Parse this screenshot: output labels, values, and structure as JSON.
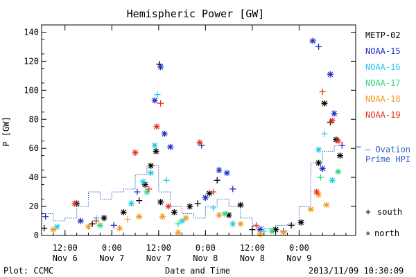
{
  "chart_data": {
    "type": "scatter",
    "title": "Hemispheric Power [GW]",
    "ylabel": "P [GW]",
    "xlabel": "Date and Time",
    "ylim": [
      0,
      145
    ],
    "xlim": [
      "2013-11-06 06:00",
      "2013-11-09 14:30"
    ],
    "y_ticks": [
      0,
      20,
      40,
      60,
      80,
      100,
      120,
      140
    ],
    "x_ticks": [
      {
        "t": "2013-11-06 12:00",
        "line1": "12:00",
        "line2": "Nov 6"
      },
      {
        "t": "2013-11-07 00:00",
        "line1": "0:00",
        "line2": "Nov 7"
      },
      {
        "t": "2013-11-07 12:00",
        "line1": "12:00",
        "line2": "Nov 7"
      },
      {
        "t": "2013-11-08 00:00",
        "line1": "0:00",
        "line2": "Nov 8"
      },
      {
        "t": "2013-11-08 12:00",
        "line1": "12:00",
        "line2": "Nov 8"
      },
      {
        "t": "2013-11-09 00:00",
        "line1": "0:00",
        "line2": "Nov 9"
      }
    ],
    "legend_placement": "right",
    "symbol_legend": {
      "south": "south",
      "north": "north",
      "south_marker": "+",
      "north_marker": "*"
    },
    "series": [
      {
        "name": "METP-02",
        "color": "#000000",
        "points": [
          {
            "x": "2013-11-06 06:40",
            "y": 5,
            "m": "+"
          },
          {
            "x": "2013-11-06 15:00",
            "y": 22,
            "m": "*"
          },
          {
            "x": "2013-11-06 19:00",
            "y": 8,
            "m": "+"
          },
          {
            "x": "2013-11-06 22:00",
            "y": 12,
            "m": "*"
          },
          {
            "x": "2013-11-07 03:00",
            "y": 16,
            "m": "*"
          },
          {
            "x": "2013-11-07 07:00",
            "y": 24,
            "m": "+"
          },
          {
            "x": "2013-11-07 08:30",
            "y": 35,
            "m": "*"
          },
          {
            "x": "2013-11-07 10:00",
            "y": 48,
            "m": "*"
          },
          {
            "x": "2013-11-07 11:20",
            "y": 58,
            "m": "*"
          },
          {
            "x": "2013-11-07 12:10",
            "y": 118,
            "m": "+"
          },
          {
            "x": "2013-11-07 12:30",
            "y": 23,
            "m": "*"
          },
          {
            "x": "2013-11-07 16:00",
            "y": 16,
            "m": "*"
          },
          {
            "x": "2013-11-07 20:00",
            "y": 20,
            "m": "*"
          },
          {
            "x": "2013-11-07 22:00",
            "y": 22,
            "m": "+"
          },
          {
            "x": "2013-11-08 01:00",
            "y": 29,
            "m": "*"
          },
          {
            "x": "2013-11-08 03:00",
            "y": 38,
            "m": "+"
          },
          {
            "x": "2013-11-08 06:00",
            "y": 14,
            "m": "*"
          },
          {
            "x": "2013-11-08 09:00",
            "y": 21,
            "m": "*"
          },
          {
            "x": "2013-11-08 12:00",
            "y": 4,
            "m": "+"
          },
          {
            "x": "2013-11-08 18:00",
            "y": 4,
            "m": "*"
          },
          {
            "x": "2013-11-08 22:00",
            "y": 7,
            "m": "+"
          },
          {
            "x": "2013-11-09 00:30",
            "y": 9,
            "m": "*"
          },
          {
            "x": "2013-11-09 05:00",
            "y": 50,
            "m": "*"
          },
          {
            "x": "2013-11-09 06:30",
            "y": 91,
            "m": "*"
          },
          {
            "x": "2013-11-09 08:00",
            "y": 78,
            "m": "+"
          },
          {
            "x": "2013-11-09 09:30",
            "y": 66,
            "m": "*"
          },
          {
            "x": "2013-11-09 10:30",
            "y": 55,
            "m": "*"
          }
        ]
      },
      {
        "name": "NOAA-15",
        "color": "#1a2ec8",
        "points": [
          {
            "x": "2013-11-06 07:00",
            "y": 13,
            "m": "+"
          },
          {
            "x": "2013-11-06 16:00",
            "y": 10,
            "m": "*"
          },
          {
            "x": "2013-11-07 00:30",
            "y": 7,
            "m": "+"
          },
          {
            "x": "2013-11-07 06:30",
            "y": 30,
            "m": "+"
          },
          {
            "x": "2013-11-07 11:00",
            "y": 93,
            "m": "*"
          },
          {
            "x": "2013-11-07 12:30",
            "y": 116,
            "m": "*"
          },
          {
            "x": "2013-11-07 13:30",
            "y": 70,
            "m": "*"
          },
          {
            "x": "2013-11-07 15:00",
            "y": 61,
            "m": "*"
          },
          {
            "x": "2013-11-07 23:00",
            "y": 62,
            "m": "+"
          },
          {
            "x": "2013-11-08 00:00",
            "y": 26,
            "m": "*"
          },
          {
            "x": "2013-11-08 03:30",
            "y": 45,
            "m": "*"
          },
          {
            "x": "2013-11-08 05:30",
            "y": 43,
            "m": "*"
          },
          {
            "x": "2013-11-08 07:00",
            "y": 32,
            "m": "+"
          },
          {
            "x": "2013-11-08 14:00",
            "y": 4,
            "m": "*"
          },
          {
            "x": "2013-11-08 20:00",
            "y": 3,
            "m": "+"
          },
          {
            "x": "2013-11-09 03:30",
            "y": 134,
            "m": "*"
          },
          {
            "x": "2013-11-09 05:00",
            "y": 130,
            "m": "+"
          },
          {
            "x": "2013-11-09 06:00",
            "y": 46,
            "m": "*"
          },
          {
            "x": "2013-11-09 08:00",
            "y": 111,
            "m": "*"
          },
          {
            "x": "2013-11-09 09:00",
            "y": 84,
            "m": "*"
          },
          {
            "x": "2013-11-09 11:00",
            "y": 62,
            "m": "+"
          }
        ]
      },
      {
        "name": "NOAA-16",
        "color": "#26c8e6",
        "points": [
          {
            "x": "2013-11-06 10:00",
            "y": 6,
            "m": "*"
          },
          {
            "x": "2013-11-06 20:00",
            "y": 12,
            "m": "+"
          },
          {
            "x": "2013-11-07 05:00",
            "y": 22,
            "m": "*"
          },
          {
            "x": "2013-11-07 08:00",
            "y": 37,
            "m": "*"
          },
          {
            "x": "2013-11-07 10:00",
            "y": 43,
            "m": "*"
          },
          {
            "x": "2013-11-07 11:00",
            "y": 62,
            "m": "*"
          },
          {
            "x": "2013-11-07 11:40",
            "y": 97,
            "m": "+"
          },
          {
            "x": "2013-11-07 14:00",
            "y": 38,
            "m": "+"
          },
          {
            "x": "2013-11-07 18:00",
            "y": 10,
            "m": "*"
          },
          {
            "x": "2013-11-08 02:00",
            "y": 19,
            "m": "+"
          },
          {
            "x": "2013-11-08 07:00",
            "y": 8,
            "m": "*"
          },
          {
            "x": "2013-11-08 15:00",
            "y": 3,
            "m": "+"
          },
          {
            "x": "2013-11-09 05:00",
            "y": 59,
            "m": "*"
          },
          {
            "x": "2013-11-09 06:30",
            "y": 70,
            "m": "+"
          },
          {
            "x": "2013-11-09 08:30",
            "y": 38,
            "m": "*"
          }
        ]
      },
      {
        "name": "NOAA-17",
        "color": "#2fd87a",
        "points": [
          {
            "x": "2013-11-06 21:00",
            "y": 7,
            "m": "*"
          },
          {
            "x": "2013-11-07 09:00",
            "y": 30,
            "m": "*"
          },
          {
            "x": "2013-11-07 17:00",
            "y": 8,
            "m": "+"
          },
          {
            "x": "2013-11-08 05:00",
            "y": 15,
            "m": "*"
          },
          {
            "x": "2013-11-08 17:00",
            "y": 3,
            "m": "*"
          },
          {
            "x": "2013-11-09 05:30",
            "y": 40,
            "m": "+"
          },
          {
            "x": "2013-11-09 10:00",
            "y": 44,
            "m": "*"
          }
        ]
      },
      {
        "name": "NOAA-18",
        "color": "#f29a1e",
        "points": [
          {
            "x": "2013-11-06 09:00",
            "y": 4,
            "m": "*"
          },
          {
            "x": "2013-11-06 18:00",
            "y": 6,
            "m": "*"
          },
          {
            "x": "2013-11-07 02:00",
            "y": 5,
            "m": "*"
          },
          {
            "x": "2013-11-07 04:00",
            "y": 11,
            "m": "+"
          },
          {
            "x": "2013-11-07 07:00",
            "y": 13,
            "m": "*"
          },
          {
            "x": "2013-11-07 13:00",
            "y": 13,
            "m": "*"
          },
          {
            "x": "2013-11-07 17:00",
            "y": 2,
            "m": "*"
          },
          {
            "x": "2013-11-07 19:00",
            "y": 12,
            "m": "*"
          },
          {
            "x": "2013-11-08 03:30",
            "y": 14,
            "m": "*"
          },
          {
            "x": "2013-11-08 09:00",
            "y": 8,
            "m": "*"
          },
          {
            "x": "2013-11-08 14:00",
            "y": 1,
            "m": "*"
          },
          {
            "x": "2013-11-08 20:00",
            "y": 2,
            "m": "*"
          },
          {
            "x": "2013-11-09 03:00",
            "y": 18,
            "m": "*"
          },
          {
            "x": "2013-11-09 05:00",
            "y": 28,
            "m": "*"
          },
          {
            "x": "2013-11-09 07:00",
            "y": 21,
            "m": "*"
          }
        ]
      },
      {
        "name": "NOAA-19",
        "color": "#e6321e",
        "points": [
          {
            "x": "2013-11-06 14:30",
            "y": 22,
            "m": "*"
          },
          {
            "x": "2013-11-06 20:00",
            "y": 10,
            "m": "+"
          },
          {
            "x": "2013-11-07 06:00",
            "y": 57,
            "m": "*"
          },
          {
            "x": "2013-11-07 09:30",
            "y": 32,
            "m": "+"
          },
          {
            "x": "2013-11-07 11:30",
            "y": 75,
            "m": "*"
          },
          {
            "x": "2013-11-07 12:30",
            "y": 91,
            "m": "+"
          },
          {
            "x": "2013-11-07 14:30",
            "y": 20,
            "m": "*"
          },
          {
            "x": "2013-11-07 22:30",
            "y": 64,
            "m": "*"
          },
          {
            "x": "2013-11-08 02:00",
            "y": 30,
            "m": "+"
          },
          {
            "x": "2013-11-08 13:00",
            "y": 7,
            "m": "+"
          },
          {
            "x": "2013-11-09 04:30",
            "y": 30,
            "m": "*"
          },
          {
            "x": "2013-11-09 06:00",
            "y": 99,
            "m": "+"
          },
          {
            "x": "2013-11-09 08:30",
            "y": 79,
            "m": "*"
          },
          {
            "x": "2013-11-09 10:00",
            "y": 65,
            "m": "*"
          }
        ]
      }
    ],
    "ovation": {
      "name": "Ovation Prime HPI",
      "line1": "— Ovation",
      "line2": "Prime HPI",
      "color": "#2a5fc8",
      "points": [
        {
          "x": "2013-11-06 06:00",
          "y": 15
        },
        {
          "x": "2013-11-06 09:00",
          "y": 10
        },
        {
          "x": "2013-11-06 12:00",
          "y": 12
        },
        {
          "x": "2013-11-06 15:00",
          "y": 20
        },
        {
          "x": "2013-11-06 18:00",
          "y": 30
        },
        {
          "x": "2013-11-06 21:00",
          "y": 25
        },
        {
          "x": "2013-11-07 00:00",
          "y": 30
        },
        {
          "x": "2013-11-07 03:00",
          "y": 32
        },
        {
          "x": "2013-11-07 06:00",
          "y": 42
        },
        {
          "x": "2013-11-07 09:00",
          "y": 48
        },
        {
          "x": "2013-11-07 12:00",
          "y": 30
        },
        {
          "x": "2013-11-07 15:00",
          "y": 20
        },
        {
          "x": "2013-11-07 18:00",
          "y": 15
        },
        {
          "x": "2013-11-07 21:00",
          "y": 12
        },
        {
          "x": "2013-11-08 00:00",
          "y": 20
        },
        {
          "x": "2013-11-08 03:00",
          "y": 25
        },
        {
          "x": "2013-11-08 06:00",
          "y": 20
        },
        {
          "x": "2013-11-08 09:00",
          "y": 12
        },
        {
          "x": "2013-11-08 12:00",
          "y": 6
        },
        {
          "x": "2013-11-08 15:00",
          "y": 5
        },
        {
          "x": "2013-11-08 18:00",
          "y": 7
        },
        {
          "x": "2013-11-08 21:00",
          "y": 8
        },
        {
          "x": "2013-11-09 00:00",
          "y": 20
        },
        {
          "x": "2013-11-09 03:00",
          "y": 50
        },
        {
          "x": "2013-11-09 06:00",
          "y": 58
        },
        {
          "x": "2013-11-09 09:00",
          "y": 62
        },
        {
          "x": "2013-11-09 11:00",
          "y": 65
        }
      ]
    }
  },
  "footer": {
    "left": "Plot: CCMC",
    "right": "2013/11/09 10:30:09"
  }
}
